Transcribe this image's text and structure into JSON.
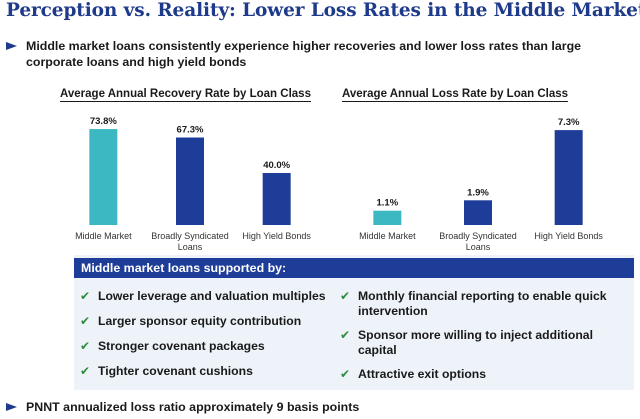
{
  "title": "Perception vs. Reality: Lower Loss Rates in the Middle Market",
  "bullets": {
    "top": "Middle market loans consistently experience higher recoveries and lower loss rates than large corporate loans and high yield bonds",
    "bottom": "PNNT annualized loss ratio approximately 9 basis points"
  },
  "chart_data": [
    {
      "type": "bar",
      "title": "Average Annual Recovery Rate by Loan Class",
      "categories": [
        "Middle Market",
        "Broadly Syndicated Loans",
        "High Yield Bonds"
      ],
      "category_lines": [
        [
          "Middle Market"
        ],
        [
          "Broadly Syndicated",
          "Loans"
        ],
        [
          "High Yield Bonds"
        ]
      ],
      "values": [
        73.8,
        67.3,
        40.0
      ],
      "value_labels": [
        "73.8%",
        "67.3%",
        "40.0%"
      ],
      "bar_colors": [
        "#3bb8c2",
        "#1e3d99",
        "#1e3d99"
      ],
      "ylim": [
        0,
        80
      ],
      "grid": false,
      "legend": false
    },
    {
      "type": "bar",
      "title": "Average Annual Loss Rate by Loan Class",
      "categories": [
        "Middle Market",
        "Broadly Syndicated Loans",
        "High Yield Bonds"
      ],
      "category_lines": [
        [
          "Middle Market"
        ],
        [
          "Broadly Syndicated",
          "Loans"
        ],
        [
          "High Yield Bonds"
        ]
      ],
      "values": [
        1.1,
        1.9,
        7.3
      ],
      "value_labels": [
        "1.1%",
        "1.9%",
        "7.3%"
      ],
      "bar_colors": [
        "#3bb8c2",
        "#1e3d99",
        "#1e3d99"
      ],
      "ylim": [
        0,
        8
      ],
      "grid": false,
      "legend": false
    }
  ],
  "support": {
    "header": "Middle market loans supported by:",
    "left": [
      "Lower leverage and valuation multiples",
      "Larger sponsor equity contribution",
      "Stronger covenant packages",
      "Tighter covenant cushions"
    ],
    "right": [
      "Monthly financial reporting to enable quick intervention",
      "Sponsor more willing to inject additional capital",
      "Attractive exit options"
    ],
    "check_icon": "check-icon",
    "check_color": "#2e8b3e"
  },
  "colors": {
    "title": "#1e3a8a",
    "teal": "#3bb8c2",
    "navy": "#1e3d99",
    "panel_bg": "#edf3f8"
  }
}
